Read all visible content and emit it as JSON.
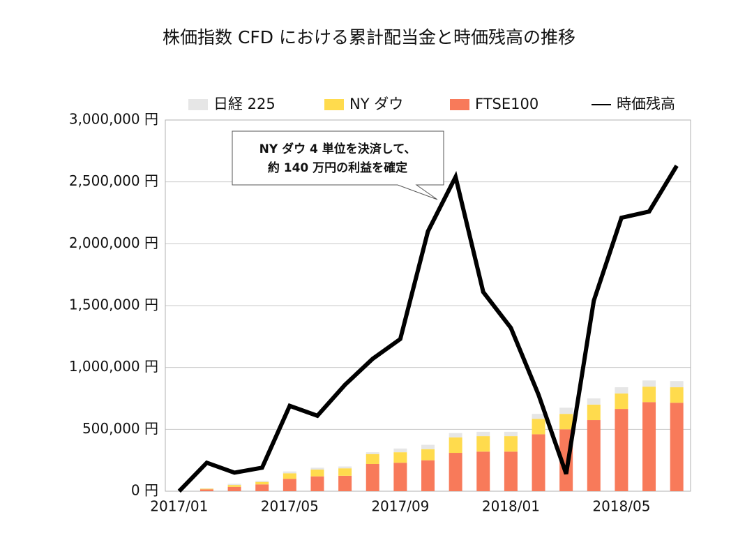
{
  "chart_data": {
    "type": "bar",
    "title": "株価指数 CFD における累計配当金と時価残高の推移",
    "categories": [
      "2017/01",
      null,
      null,
      null,
      "2017/05",
      null,
      null,
      null,
      "2017/09",
      null,
      null,
      null,
      "2018/01",
      null,
      null,
      null,
      "2018/05",
      null,
      null
    ],
    "series": [
      {
        "name": "日経 225",
        "type": "bar",
        "color": "#e6e6e6",
        "values": [
          0,
          3000,
          10000,
          10000,
          15000,
          15000,
          15000,
          15000,
          30000,
          35000,
          35000,
          35000,
          35000,
          40000,
          50000,
          50000,
          50000,
          50000,
          50000
        ]
      },
      {
        "name": "NY ダウ",
        "type": "bar",
        "color": "#ffdb4d",
        "values": [
          0,
          5000,
          15000,
          20000,
          45000,
          55000,
          60000,
          80000,
          85000,
          90000,
          125000,
          125000,
          125000,
          125000,
          125000,
          125000,
          125000,
          125000,
          125000
        ]
      },
      {
        "name": "FTSE100",
        "type": "bar",
        "color": "#f87a5a",
        "values": [
          0,
          15000,
          35000,
          55000,
          100000,
          120000,
          125000,
          220000,
          230000,
          250000,
          310000,
          320000,
          320000,
          460000,
          500000,
          575000,
          665000,
          720000,
          715000
        ]
      },
      {
        "name": "時価残高",
        "type": "line",
        "color": "#000000",
        "values": [
          0,
          230000,
          150000,
          190000,
          690000,
          610000,
          860000,
          1070000,
          1230000,
          2100000,
          2540000,
          1610000,
          1320000,
          780000,
          140000,
          1540000,
          2210000,
          2260000,
          2630000
        ]
      }
    ],
    "ylim": [
      0,
      3000000
    ],
    "yticks": [
      {
        "value": 0,
        "label": "0 円"
      },
      {
        "value": 500000,
        "label": "500,000 円"
      },
      {
        "value": 1000000,
        "label": "1,000,000 円"
      },
      {
        "value": 1500000,
        "label": "1,500,000 円"
      },
      {
        "value": 2000000,
        "label": "2,000,000 円"
      },
      {
        "value": 2500000,
        "label": "2,500,000 円"
      },
      {
        "value": 3000000,
        "label": "3,000,000 円"
      }
    ],
    "grid": true,
    "legend": "top",
    "annotation": [
      "NY ダウ 4 単位を決済して、",
      "約 140 万円の利益を確定"
    ]
  }
}
